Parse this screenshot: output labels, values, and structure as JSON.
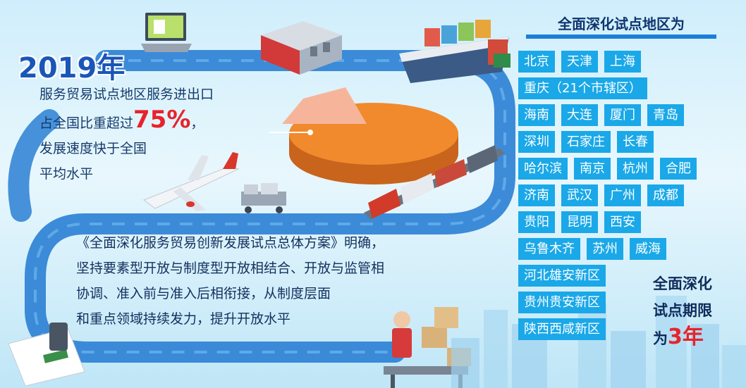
{
  "year": "2019年",
  "summary": {
    "line1": "服务贸易试点地区服务进出口",
    "line2_prefix": "占全国比重超过",
    "percentage": "75%",
    "line2_suffix": "，",
    "line3": "发展速度快于全国",
    "line4": "平均水平"
  },
  "plan": {
    "line1": "《全面深化服务贸易创新发展试点总体方案》明确，",
    "line2": "坚持要素型开放与制度型开放相结合、开放与监管相",
    "line3": "协调、准入前与准入后相衔接，从制度层面",
    "line4": "和重点领域持续发力，提升开放水平"
  },
  "regions": {
    "title": "全面深化试点地区为",
    "rows": [
      [
        "北京",
        "天津",
        "上海"
      ],
      [
        "重庆（21个市辖区）"
      ],
      [
        "海南",
        "大连",
        "厦门",
        "青岛"
      ],
      [
        "深圳",
        "石家庄",
        "长春"
      ],
      [
        "哈尔滨",
        "南京",
        "杭州",
        "合肥"
      ],
      [
        "济南",
        "武汉",
        "广州",
        "成都"
      ],
      [
        "贵阳",
        "昆明",
        "西安"
      ],
      [
        "乌鲁木齐",
        "苏州",
        "威海"
      ],
      [
        "河北雄安新区"
      ],
      [
        "贵州贵安新区"
      ],
      [
        "陕西西咸新区"
      ]
    ]
  },
  "period": {
    "line1": "全面深化",
    "line2": "试点期限",
    "line3_prefix": "为",
    "years": "3年"
  },
  "pie_share": 0.75,
  "colors": {
    "path": "#2a7fd4",
    "tag": "#1aa8e8",
    "pie_main": "#f08a2c",
    "pie_slice": "#f6b59a",
    "accent_red": "#e8232b"
  }
}
